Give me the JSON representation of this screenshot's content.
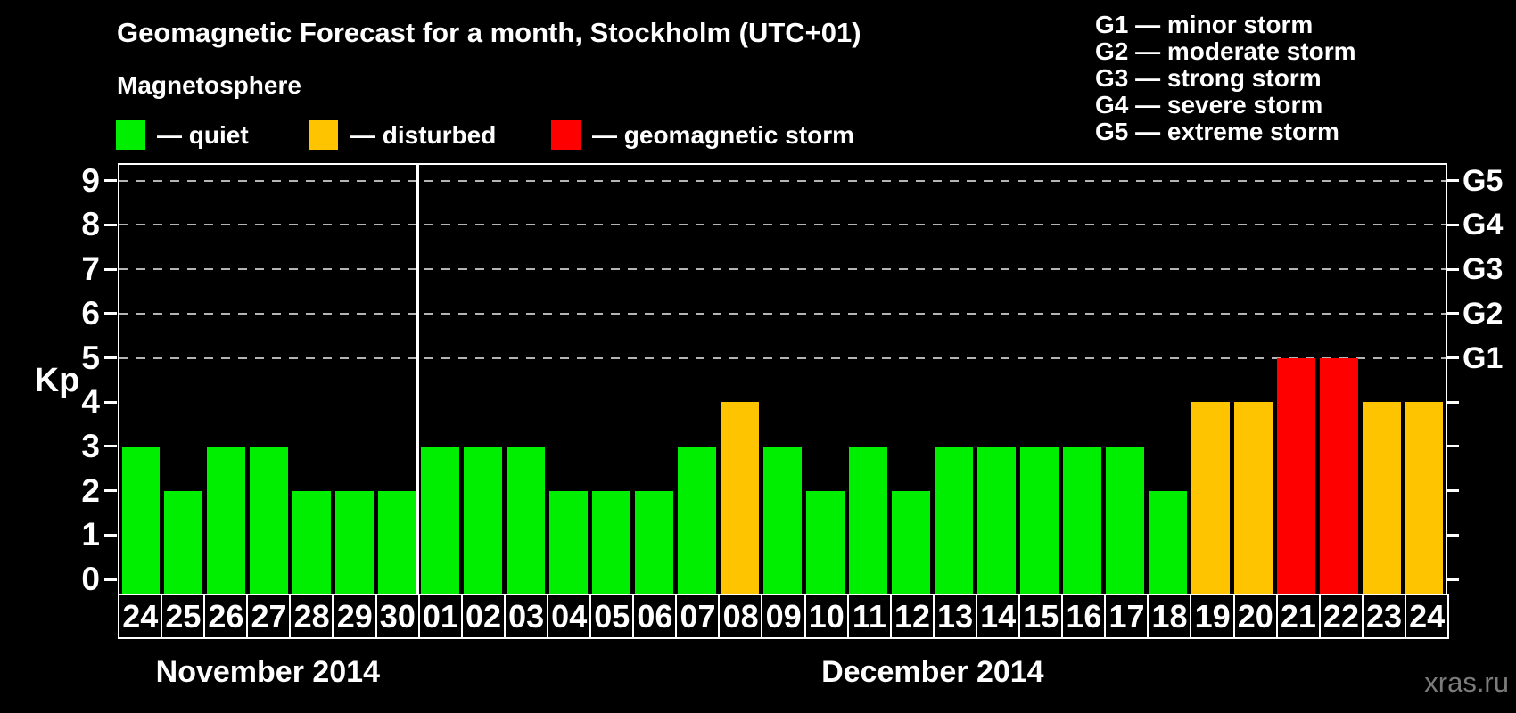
{
  "legend": {
    "title": "Magnetosphere",
    "items": [
      {
        "key": "quiet",
        "label": "— quiet",
        "color": "#00ee00"
      },
      {
        "key": "disturbed",
        "label": "— disturbed",
        "color": "#ffc400"
      },
      {
        "key": "storm",
        "label": "— geomagnetic storm",
        "color": "#ff0000"
      }
    ]
  },
  "g_legend": [
    "G1 — minor storm",
    "G2 — moderate storm",
    "G3 — strong storm",
    "G4 — severe storm",
    "G5 — extreme storm"
  ],
  "watermark": "xras.ru",
  "chart_data": {
    "type": "bar",
    "title": "Geomagnetic Forecast for a month, Stockholm (UTC+01)",
    "ylabel": "Kp",
    "ylim": [
      0,
      9
    ],
    "y_ticks": [
      0,
      1,
      2,
      3,
      4,
      5,
      6,
      7,
      8,
      9
    ],
    "gridlines_at_kp": [
      5,
      6,
      7,
      8,
      9
    ],
    "grid": "dashed-horizontal",
    "legend_position": "top-left",
    "right_axis": [
      {
        "label": "G1",
        "kp": 5
      },
      {
        "label": "G2",
        "kp": 6
      },
      {
        "label": "G3",
        "kp": 7
      },
      {
        "label": "G4",
        "kp": 8
      },
      {
        "label": "G5",
        "kp": 9
      }
    ],
    "status_colors": {
      "quiet": "#00ee00",
      "disturbed": "#ffc400",
      "storm": "#ff0000"
    },
    "groups": [
      {
        "label": "November 2014",
        "categories": [
          "24",
          "25",
          "26",
          "27",
          "28",
          "29",
          "30"
        ],
        "values": [
          3,
          2,
          3,
          3,
          2,
          2,
          2
        ],
        "statuses": [
          "quiet",
          "quiet",
          "quiet",
          "quiet",
          "quiet",
          "quiet",
          "quiet"
        ]
      },
      {
        "label": "December 2014",
        "categories": [
          "01",
          "02",
          "03",
          "04",
          "05",
          "06",
          "07",
          "08",
          "09",
          "10",
          "11",
          "12",
          "13",
          "14",
          "15",
          "16",
          "17",
          "18",
          "19",
          "20",
          "21",
          "22",
          "23",
          "24"
        ],
        "values": [
          3,
          3,
          3,
          2,
          2,
          2,
          3,
          4,
          3,
          2,
          3,
          2,
          3,
          3,
          3,
          3,
          3,
          2,
          4,
          4,
          5,
          5,
          4,
          4
        ],
        "statuses": [
          "quiet",
          "quiet",
          "quiet",
          "quiet",
          "quiet",
          "quiet",
          "quiet",
          "disturbed",
          "quiet",
          "quiet",
          "quiet",
          "quiet",
          "quiet",
          "quiet",
          "quiet",
          "quiet",
          "quiet",
          "quiet",
          "disturbed",
          "disturbed",
          "storm",
          "storm",
          "disturbed",
          "disturbed"
        ]
      }
    ]
  }
}
